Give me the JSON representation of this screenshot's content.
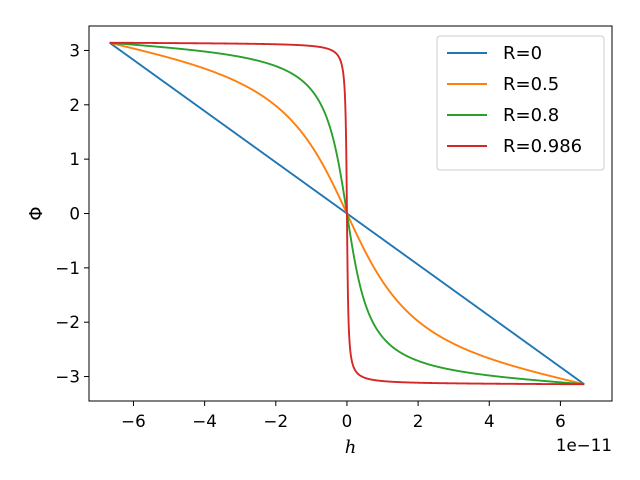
{
  "chart_data": {
    "type": "line",
    "xlabel": "h",
    "ylabel": "Φ",
    "x_offset_label": "1e−11",
    "xlim": [
      -7.25,
      7.45
    ],
    "ylim": [
      -3.45,
      3.45
    ],
    "x_ticks": [
      -6,
      -4,
      -2,
      0,
      2,
      4,
      6
    ],
    "x_tick_labels": [
      "−6",
      "−4",
      "−2",
      "0",
      "2",
      "4",
      "6"
    ],
    "y_ticks": [
      -3,
      -2,
      -1,
      0,
      1,
      2,
      3
    ],
    "y_tick_labels": [
      "−3",
      "−2",
      "−1",
      "0",
      "1",
      "2",
      "3"
    ],
    "x_domain": [
      -6.67,
      6.67
    ],
    "legend_position": "upper-right",
    "series": [
      {
        "name": "R=0",
        "R": 0,
        "color": "#1f77b4"
      },
      {
        "name": "R=0.5",
        "R": 0.5,
        "color": "#ff7f0e"
      },
      {
        "name": "R=0.8",
        "R": 0.8,
        "color": "#2ca02c"
      },
      {
        "name": "R=0.986",
        "R": 0.986,
        "color": "#d62728"
      }
    ]
  }
}
